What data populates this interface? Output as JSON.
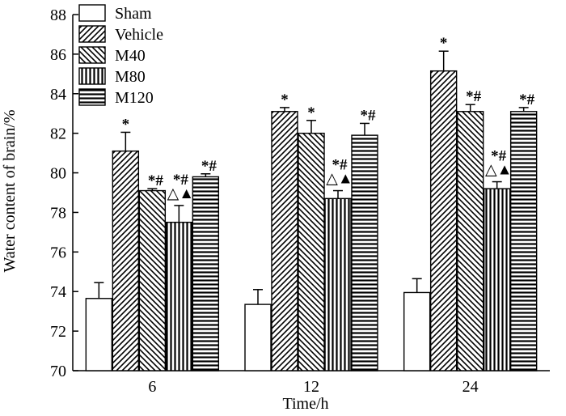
{
  "chart_data": {
    "type": "bar",
    "title": "",
    "xlabel": "Time/h",
    "ylabel": "Water content of brain/%",
    "ylim": [
      70,
      88
    ],
    "yticks": [
      70,
      72,
      74,
      76,
      78,
      80,
      82,
      84,
      86,
      88
    ],
    "categories": [
      "6",
      "12",
      "24"
    ],
    "legend_position": "top-left",
    "series": [
      {
        "name": "Sham",
        "pattern": "none",
        "values": [
          73.65,
          73.35,
          73.95
        ],
        "errors": [
          0.8,
          0.75,
          0.7
        ],
        "labels": [
          "",
          "",
          ""
        ]
      },
      {
        "name": "Vehicle",
        "pattern": "diagonal-up",
        "values": [
          81.1,
          83.1,
          85.15
        ],
        "errors": [
          0.95,
          0.2,
          1.0
        ],
        "labels": [
          "*",
          "*",
          "*"
        ]
      },
      {
        "name": "M40",
        "pattern": "diagonal-down",
        "values": [
          79.1,
          82.0,
          83.1
        ],
        "errors": [
          0.1,
          0.65,
          0.35
        ],
        "labels": [
          "*#",
          "*",
          "*#"
        ]
      },
      {
        "name": "M80",
        "pattern": "vertical",
        "values": [
          77.5,
          78.7,
          79.2
        ],
        "errors": [
          0.85,
          0.4,
          0.35
        ],
        "labels": [
          "*#△▲",
          "*#△▲",
          "*#△▲"
        ]
      },
      {
        "name": "M120",
        "pattern": "horizontal",
        "values": [
          79.8,
          81.9,
          83.1
        ],
        "errors": [
          0.15,
          0.6,
          0.2
        ],
        "labels": [
          "*#",
          "*#",
          "*#"
        ]
      }
    ]
  }
}
